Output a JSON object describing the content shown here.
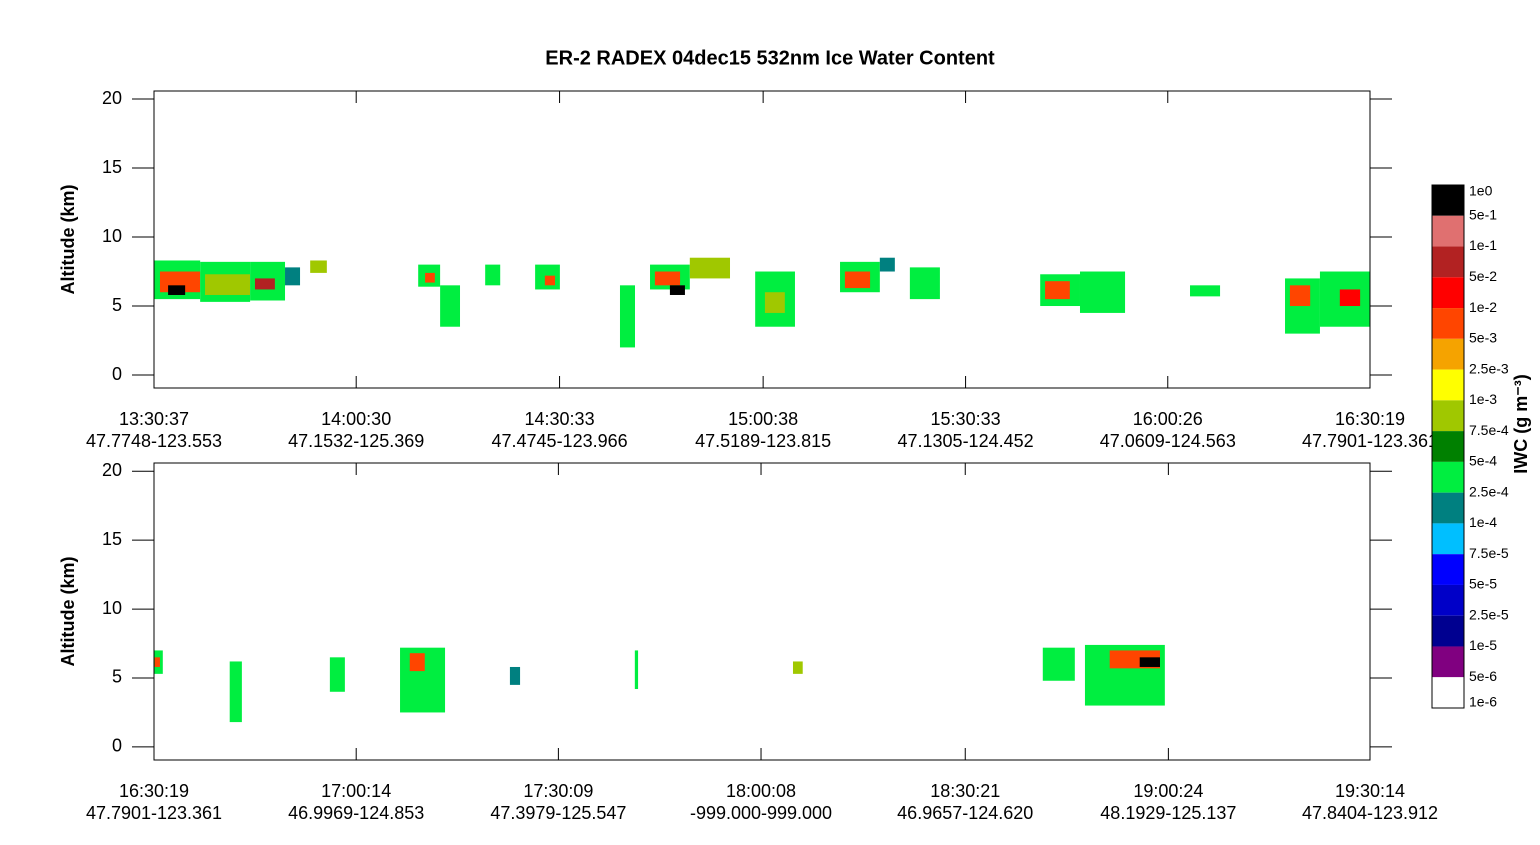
{
  "chart_data": [
    {
      "type": "curtain",
      "title": "ER-2  RADEX  04dec15  532nm Ice Water Content",
      "ylabel": "Altitude (km)",
      "xlim": [
        13.5103,
        16.5053
      ],
      "ylim": [
        -0.94,
        20.58
      ],
      "yticks": [
        0,
        5,
        10,
        15,
        20
      ],
      "xticks": [
        {
          "value": 13.5103,
          "label": "13:30:37"
        },
        {
          "value": 14.0083,
          "label": "14:00:30"
        },
        {
          "value": 14.5092,
          "label": "14:30:33"
        },
        {
          "value": 15.0106,
          "label": "15:00:38"
        },
        {
          "value": 15.5092,
          "label": "15:30:33"
        },
        {
          "value": 16.0072,
          "label": "16:00:26"
        },
        {
          "value": 16.5053,
          "label": "16:30:19"
        }
      ],
      "xtick_sublabels": [
        "47.7748-123.553",
        "47.1532-125.369",
        "47.4745-123.966",
        "47.5189-123.815",
        "47.1305-124.452",
        "47.0609-124.563",
        "47.7901-123.361"
      ],
      "colorbar": {
        "title": "IWC (g m⁻³)",
        "levels": [
          {
            "value": 1,
            "label": "1e0"
          },
          {
            "value": 0.5,
            "label": "5e-1"
          },
          {
            "value": 0.1,
            "label": "1e-1"
          },
          {
            "value": 0.05,
            "label": "5e-2"
          },
          {
            "value": 0.01,
            "label": "1e-2"
          },
          {
            "value": 0.005,
            "label": "5e-3"
          },
          {
            "value": 0.0025,
            "label": "2.5e-3"
          },
          {
            "value": 0.001,
            "label": "1e-3"
          },
          {
            "value": 0.00075,
            "label": "7.5e-4"
          },
          {
            "value": 0.0005,
            "label": "5e-4"
          },
          {
            "value": 0.00025,
            "label": "2.5e-4"
          },
          {
            "value": 0.0001,
            "label": "1e-4"
          },
          {
            "value": 7.5e-05,
            "label": "7.5e-5"
          },
          {
            "value": 5e-05,
            "label": "5e-5"
          },
          {
            "value": 2.5e-05,
            "label": "2.5e-5"
          },
          {
            "value": 1e-05,
            "label": "1e-5"
          },
          {
            "value": 5e-06,
            "label": "5e-6"
          },
          {
            "value": 1e-06,
            "label": "1e-6"
          }
        ],
        "colors": [
          "#000000",
          "#e07070",
          "#b22222",
          "#ff0000",
          "#ff4500",
          "#f5a300",
          "#ffff00",
          "#a0c800",
          "#008000",
          "#00ee40",
          "#008080",
          "#00bfff",
          "#0000ff",
          "#0000c8",
          "#000090",
          "#800080",
          "#ffffff"
        ]
      },
      "cells": {
        "x_start": [
          13.51,
          13.525,
          13.624,
          13.636,
          13.747,
          13.759,
          13.545,
          13.833,
          13.895,
          14.161,
          14.178,
          14.215,
          14.326,
          14.449,
          14.473,
          14.658,
          14.732,
          14.744,
          14.781,
          14.83,
          14.991,
          15.015,
          15.2,
          15.212,
          15.298,
          15.372,
          15.693,
          15.705,
          15.791,
          16.062,
          16.296,
          16.308,
          16.382,
          16.431
        ],
        "x_end": [
          13.624,
          13.624,
          13.747,
          13.747,
          13.833,
          13.808,
          13.587,
          13.87,
          13.936,
          14.215,
          14.202,
          14.264,
          14.363,
          14.51,
          14.498,
          14.695,
          14.83,
          14.806,
          14.818,
          14.929,
          15.089,
          15.064,
          15.298,
          15.274,
          15.335,
          15.446,
          15.791,
          15.766,
          15.902,
          16.136,
          16.382,
          16.358,
          16.505,
          16.481
        ],
        "base": [
          5.5,
          6.0,
          5.3,
          5.8,
          5.4,
          6.2,
          5.8,
          6.5,
          7.4,
          6.4,
          6.7,
          3.5,
          6.5,
          6.2,
          6.5,
          2.0,
          6.2,
          6.5,
          5.8,
          7.0,
          3.5,
          4.5,
          6.0,
          6.3,
          7.5,
          5.5,
          5.0,
          5.5,
          4.5,
          5.7,
          3.0,
          5.0,
          3.5,
          5.0
        ],
        "top": [
          8.3,
          7.5,
          8.2,
          7.3,
          8.2,
          7.0,
          6.5,
          7.8,
          8.3,
          8.0,
          7.4,
          6.5,
          8.0,
          8.0,
          7.2,
          6.5,
          8.0,
          7.5,
          6.5,
          8.5,
          7.5,
          6.0,
          8.2,
          7.5,
          8.5,
          7.8,
          7.3,
          6.8,
          7.5,
          6.5,
          7.0,
          6.5,
          7.5,
          6.2
        ],
        "iwc": [
          0.0004,
          0.005,
          0.0004,
          0.0009,
          0.0004,
          0.05,
          0.8,
          0.0002,
          0.0009,
          0.0004,
          0.005,
          0.0004,
          0.0004,
          0.0004,
          0.005,
          0.0004,
          0.0004,
          0.005,
          0.8,
          0.0009,
          0.0004,
          0.0009,
          0.0004,
          0.005,
          0.0002,
          0.0004,
          0.0004,
          0.005,
          0.0004,
          0.0004,
          0.0004,
          0.005,
          0.0004,
          0.01
        ]
      }
    },
    {
      "type": "curtain",
      "ylabel": "Altitude (km)",
      "xlim": [
        16.5053,
        19.5039
      ],
      "ylim": [
        -0.95,
        20.6
      ],
      "yticks": [
        0,
        5,
        10,
        15,
        20
      ],
      "xticks": [
        {
          "value": 16.5053,
          "label": "16:30:19"
        },
        {
          "value": 17.0039,
          "label": "17:00:14"
        },
        {
          "value": 17.5025,
          "label": "17:30:09"
        },
        {
          "value": 18.0022,
          "label": "18:00:08"
        },
        {
          "value": 18.5058,
          "label": "18:30:21"
        },
        {
          "value": 19.0067,
          "label": "19:00:24"
        },
        {
          "value": 19.5039,
          "label": "19:30:14"
        }
      ],
      "xtick_sublabels": [
        "47.7901-123.361",
        "46.9969-124.853",
        "47.3979-125.547",
        "-999.000-999.000",
        "46.9657-124.620",
        "48.1929-125.137",
        "47.8404-123.912"
      ],
      "cells": {
        "x_start": [
          16.505,
          16.507,
          16.692,
          16.939,
          17.112,
          17.136,
          17.383,
          17.691,
          18.081,
          18.697,
          18.801,
          18.862,
          18.936
        ],
        "x_end": [
          16.527,
          16.52,
          16.722,
          16.976,
          17.223,
          17.173,
          17.408,
          17.699,
          18.105,
          18.776,
          18.998,
          18.986,
          18.986
        ],
        "base": [
          5.3,
          5.8,
          1.8,
          4.0,
          2.5,
          5.5,
          4.5,
          4.2,
          5.3,
          4.8,
          3.0,
          5.7,
          5.8
        ],
        "top": [
          7.0,
          6.5,
          6.2,
          6.5,
          7.2,
          6.8,
          5.8,
          7.0,
          6.2,
          7.2,
          7.4,
          7.0,
          6.5
        ],
        "iwc": [
          0.0004,
          0.005,
          0.0004,
          0.0004,
          0.0004,
          0.005,
          0.0002,
          0.0004,
          0.0009,
          0.0004,
          0.0004,
          0.005,
          0.8
        ]
      }
    }
  ]
}
